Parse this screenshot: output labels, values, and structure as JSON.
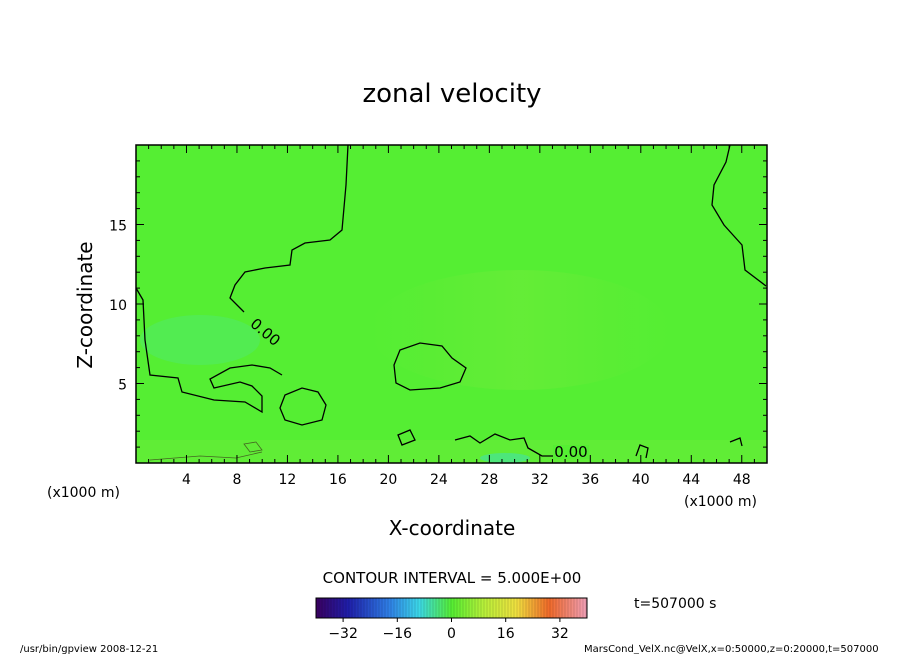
{
  "chart_data": {
    "type": "heatmap",
    "title": "zonal velocity",
    "xlabel": "X-coordinate",
    "ylabel": "Z-coordinate",
    "x_unit_left": "(x1000 m)",
    "x_unit_right": "(x1000 m)",
    "y_unit": "(x1000 m)",
    "xlim": [
      0,
      50
    ],
    "ylim": [
      0,
      20
    ],
    "x_ticks": [
      4,
      8,
      12,
      16,
      20,
      24,
      28,
      32,
      36,
      40,
      44,
      48
    ],
    "y_ticks": [
      5,
      10,
      15
    ],
    "contour_interval_text": "CONTOUR INTERVAL = 5.000E+00",
    "contour_labels": [
      {
        "text": "0.00",
        "x": 10,
        "z": 8.2
      },
      {
        "text": "0.00",
        "x": 34.5,
        "z": 0.6
      }
    ],
    "colorbar": {
      "range": [
        -40,
        40
      ],
      "ticks": [
        -32,
        -16,
        0,
        16,
        32
      ],
      "tick_labels": [
        "−32",
        "−16",
        "0",
        "16",
        "32"
      ]
    },
    "time_label": "t=507000 s",
    "field_color": "#55ee33"
  },
  "footer": {
    "left": "/usr/bin/gpview   2008-12-21",
    "right": "MarsCond_VelX.nc@VelX,x=0:50000,z=0:20000,t=507000"
  }
}
